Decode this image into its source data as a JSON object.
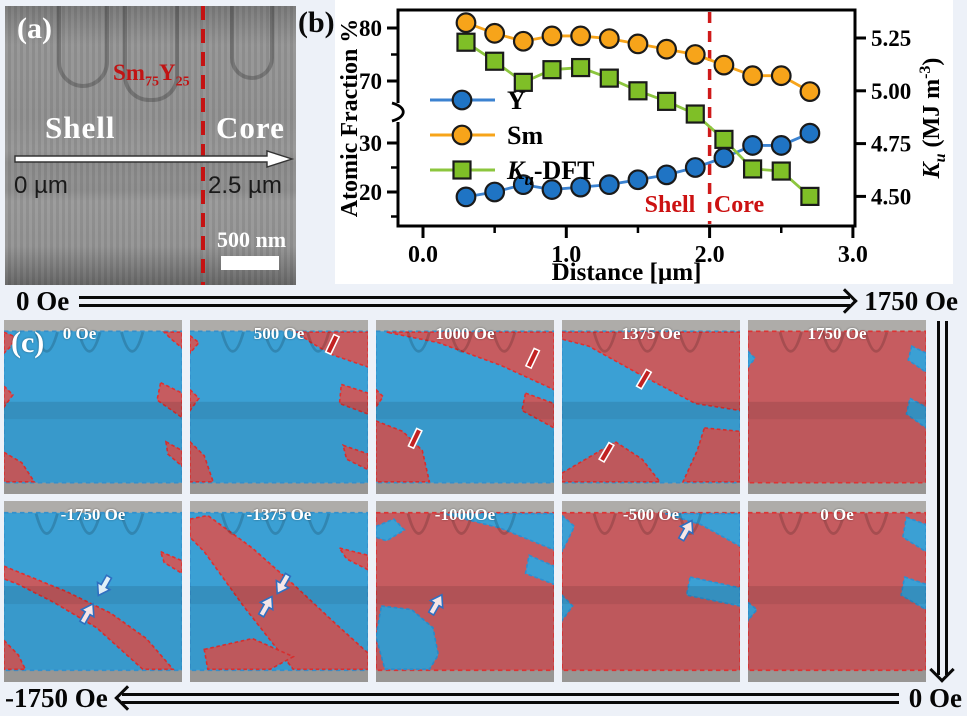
{
  "figure": {
    "background": "#edf1f8",
    "panel_a": {
      "label": "(a)",
      "composition": {
        "el1": "Sm",
        "sub1": "75",
        "el2": "Y",
        "sub2": "25"
      },
      "shell": "Shell",
      "core": "Core",
      "pos_start": "0 µm",
      "pos_end": "2.5 µm",
      "scalebar": "500 nm"
    },
    "panel_b": {
      "label": "(b)"
    },
    "panel_c": {
      "label": "(c)",
      "top_sweep": {
        "start": "0 Oe",
        "end": "1750 Oe"
      },
      "bottom_sweep": {
        "start": "-1750 Oe",
        "end": "0 Oe"
      },
      "tiles": [
        {
          "label": "0 Oe"
        },
        {
          "label": "500 Oe"
        },
        {
          "label": "1000 Oe"
        },
        {
          "label": "1375 Oe"
        },
        {
          "label": "1750 Oe"
        },
        {
          "label": "-1750 Oe"
        },
        {
          "label": "-1375 Oe"
        },
        {
          "label": "-1000Oe"
        },
        {
          "label": "-500 Oe"
        },
        {
          "label": "0 Oe"
        }
      ],
      "overlay_colors": {
        "blue": "#3ba0d4",
        "red": "#c65c60"
      }
    }
  },
  "chart_data": {
    "type": "line",
    "xlabel": "Distance [µm]",
    "ylabel_left": "Atomic Fraction %",
    "ylabel_right": "Ku (MJ m-3)",
    "x": [
      0.3,
      0.5,
      0.7,
      0.9,
      1.1,
      1.3,
      1.5,
      1.7,
      1.9,
      2.1,
      2.3,
      2.5,
      2.7
    ],
    "series": [
      {
        "name": "Y",
        "axis": "left",
        "marker": "circle",
        "marker_color": "#1f74c4",
        "line_color": "#3b82d0",
        "values": [
          19,
          20,
          21.5,
          20.5,
          21,
          21.5,
          22.5,
          23.5,
          25,
          27,
          29.5,
          29.5,
          32
        ]
      },
      {
        "name": "Sm",
        "axis": "left",
        "marker": "circle",
        "marker_color": "#f7a41a",
        "line_color": "#f7a41a",
        "values": [
          81,
          79,
          77.5,
          78.5,
          78.5,
          78,
          77,
          76,
          75,
          73,
          71,
          71,
          68
        ]
      },
      {
        "name": "Ku-DFT",
        "axis": "right",
        "marker": "square",
        "marker_color": "#7fbf27",
        "line_color": "#8cc63e",
        "values": [
          5.23,
          5.14,
          5.04,
          5.1,
          5.11,
          5.06,
          5.0,
          4.95,
          4.89,
          4.77,
          4.63,
          4.62,
          4.5
        ]
      }
    ],
    "left_axis": {
      "major": [
        80,
        70,
        30,
        20
      ],
      "labels": [
        "80",
        "70",
        "30",
        "20"
      ],
      "minor": [
        75,
        25,
        15
      ],
      "break_between": [
        36,
        64
      ]
    },
    "right_axis": {
      "major": [
        5.25,
        5.0,
        4.75,
        4.5
      ],
      "labels": [
        "5.25",
        "5.00",
        "4.75",
        "4.50"
      ]
    },
    "x_axis": {
      "major": [
        0,
        1,
        2,
        3
      ],
      "labels": [
        "0.0",
        "1.0",
        "2.0",
        "3.0"
      ],
      "minor": [
        0.5,
        1.5,
        2.5
      ],
      "range": [
        0,
        3.0
      ]
    },
    "annotations": {
      "shell": "Shell",
      "core": "Core",
      "divider_x": 2.0,
      "divider_color": "#cf1a1a",
      "accent_red": "#cc1111"
    },
    "legend_position": "inside-left",
    "grid": false
  }
}
